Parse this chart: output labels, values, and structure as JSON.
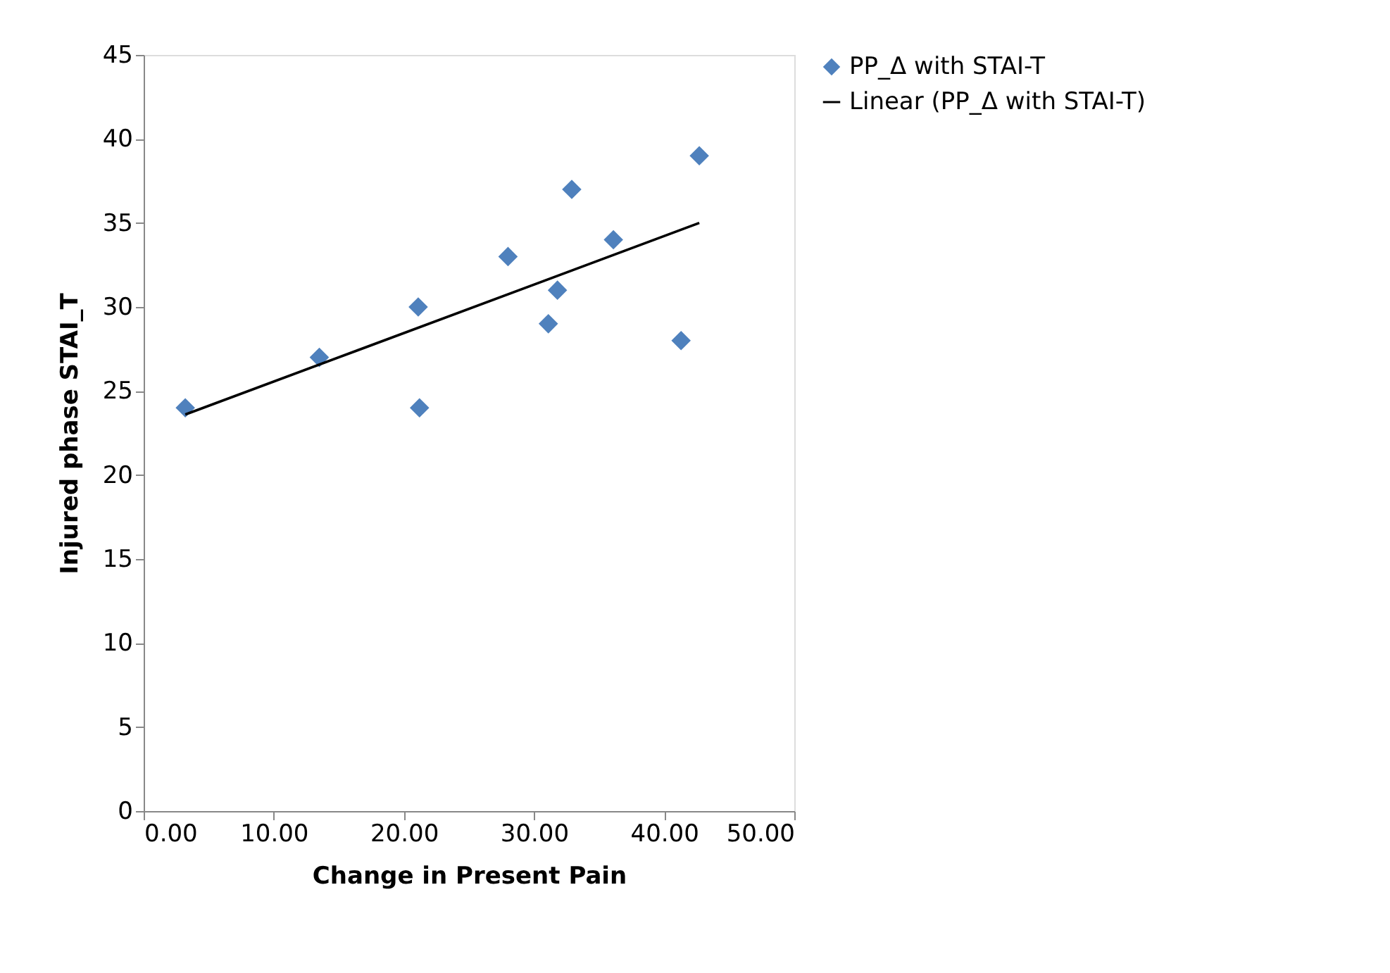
{
  "chart_data": {
    "type": "scatter",
    "xlabel": "Change in Present Pain",
    "ylabel": "Injured phase STAI_T",
    "xlim": [
      0,
      50
    ],
    "xticks": [
      {
        "value": 0,
        "label": "0.00"
      },
      {
        "value": 10,
        "label": "10.00"
      },
      {
        "value": 20,
        "label": "20.00"
      },
      {
        "value": 30,
        "label": "30.00"
      },
      {
        "value": 40,
        "label": "40.00"
      },
      {
        "value": 50,
        "label": "50.00"
      }
    ],
    "ylim": [
      0,
      45
    ],
    "yticks": [
      0,
      5,
      10,
      15,
      20,
      25,
      30,
      35,
      40,
      45
    ],
    "grid": false,
    "legend": "right",
    "series": [
      {
        "name": "PP_Δ with STAI-T",
        "marker": "diamond",
        "color": "#4f81bd",
        "x": [
          3.2,
          13.5,
          21.1,
          21.2,
          28.0,
          31.1,
          31.8,
          32.9,
          36.1,
          41.3,
          42.7
        ],
        "values": [
          24,
          27,
          30,
          24,
          33,
          29,
          31,
          37,
          34,
          28,
          39
        ]
      },
      {
        "name": "Linear (PP_Δ with STAI-T)",
        "type": "line",
        "marker": "none",
        "line_style": "solid",
        "color": "#000000",
        "x": [
          3.2,
          42.7
        ],
        "values": [
          23.6,
          35.0
        ]
      }
    ]
  }
}
